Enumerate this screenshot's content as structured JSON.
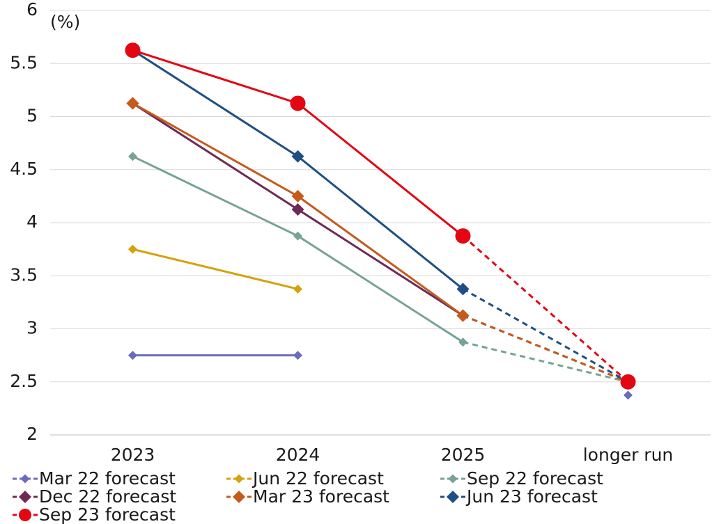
{
  "chart_data": {
    "type": "line",
    "y_unit": "(%)",
    "categories": [
      "2023",
      "2024",
      "2025",
      "longer run"
    ],
    "ylim": [
      2,
      6
    ],
    "yticks": [
      2,
      2.5,
      3,
      3.5,
      4,
      4.5,
      5,
      5.5,
      6
    ],
    "grid": true,
    "series": [
      {
        "name": "Mar 22 forecast",
        "color": "#6b6bbd",
        "marker": "small-diamond",
        "values": [
          2.75,
          2.75,
          null,
          2.375
        ]
      },
      {
        "name": "Jun 22 forecast",
        "color": "#d4a20a",
        "marker": "small-diamond",
        "values": [
          3.75,
          3.375,
          null,
          2.5
        ]
      },
      {
        "name": "Sep 22 forecast",
        "color": "#76a393",
        "marker": "small-diamond",
        "values": [
          4.625,
          3.875,
          2.875,
          2.5
        ]
      },
      {
        "name": "Dec 22 forecast",
        "color": "#6e2a55",
        "marker": "diamond",
        "values": [
          5.125,
          4.125,
          3.125,
          2.5
        ]
      },
      {
        "name": "Mar 23 forecast",
        "color": "#c55a1b",
        "marker": "diamond",
        "values": [
          5.125,
          4.25,
          3.125,
          2.5
        ]
      },
      {
        "name": "Jun 23 forecast",
        "color": "#1f4e84",
        "marker": "diamond",
        "values": [
          5.625,
          4.625,
          3.375,
          2.5
        ]
      },
      {
        "name": "Sep 23 forecast",
        "color": "#e30613",
        "marker": "circle",
        "values": [
          5.625,
          5.125,
          3.875,
          2.5
        ]
      }
    ]
  }
}
